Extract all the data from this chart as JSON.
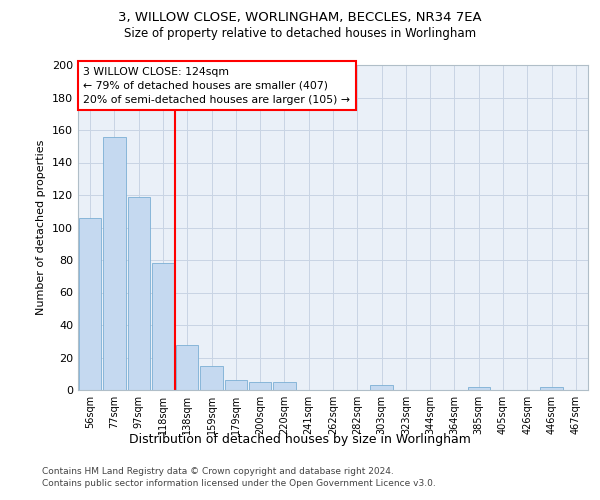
{
  "title_line1": "3, WILLOW CLOSE, WORLINGHAM, BECCLES, NR34 7EA",
  "title_line2": "Size of property relative to detached houses in Worlingham",
  "xlabel": "Distribution of detached houses by size in Worlingham",
  "ylabel": "Number of detached properties",
  "bar_values": [
    106,
    156,
    119,
    78,
    28,
    15,
    6,
    5,
    5,
    0,
    0,
    0,
    3,
    0,
    0,
    0,
    2,
    0,
    0,
    2,
    0
  ],
  "all_labels": [
    "56sqm",
    "77sqm",
    "97sqm",
    "118sqm",
    "138sqm",
    "159sqm",
    "179sqm",
    "200sqm",
    "220sqm",
    "241sqm",
    "262sqm",
    "282sqm",
    "303sqm",
    "323sqm",
    "344sqm",
    "364sqm",
    "385sqm",
    "405sqm",
    "426sqm",
    "446sqm",
    "467sqm"
  ],
  "bar_color": "#c5d9f0",
  "bar_edge_color": "#7bafd4",
  "vline_x": 3.5,
  "vline_color": "red",
  "annotation_text": "3 WILLOW CLOSE: 124sqm\n← 79% of detached houses are smaller (407)\n20% of semi-detached houses are larger (105) →",
  "annotation_box_color": "white",
  "annotation_box_edge": "red",
  "ylim": [
    0,
    200
  ],
  "yticks": [
    0,
    20,
    40,
    60,
    80,
    100,
    120,
    140,
    160,
    180,
    200
  ],
  "footer_line1": "Contains HM Land Registry data © Crown copyright and database right 2024.",
  "footer_line2": "Contains public sector information licensed under the Open Government Licence v3.0.",
  "plot_bg_color": "#eaf0f8"
}
